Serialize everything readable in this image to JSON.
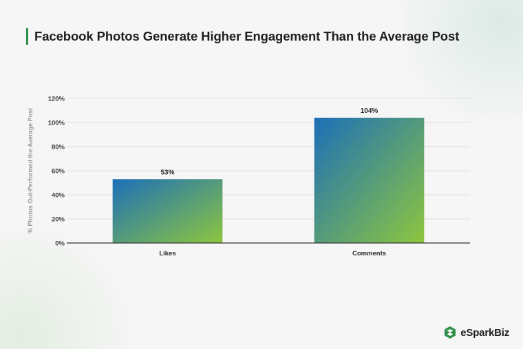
{
  "title": "Facebook Photos Generate Higher Engagement Than the Average Post",
  "brand": {
    "name": "eSparkBiz",
    "accent": "#2f8f4a"
  },
  "chart_data": {
    "type": "bar",
    "categories": [
      "Likes",
      "Comments"
    ],
    "values": [
      53,
      104
    ],
    "data_labels": [
      "53%",
      "104%"
    ],
    "ylabel": "% Photos Out-Performed the Average Post",
    "xlabel": "",
    "ylim": [
      0,
      120
    ],
    "y_ticks": [
      0,
      20,
      40,
      60,
      80,
      100,
      120
    ],
    "y_tick_labels": [
      "0%",
      "20%",
      "40%",
      "60%",
      "80%",
      "100%",
      "120%"
    ],
    "grid": true,
    "bar_gradient": [
      "#1c6fb8",
      "#8dc63f"
    ]
  }
}
